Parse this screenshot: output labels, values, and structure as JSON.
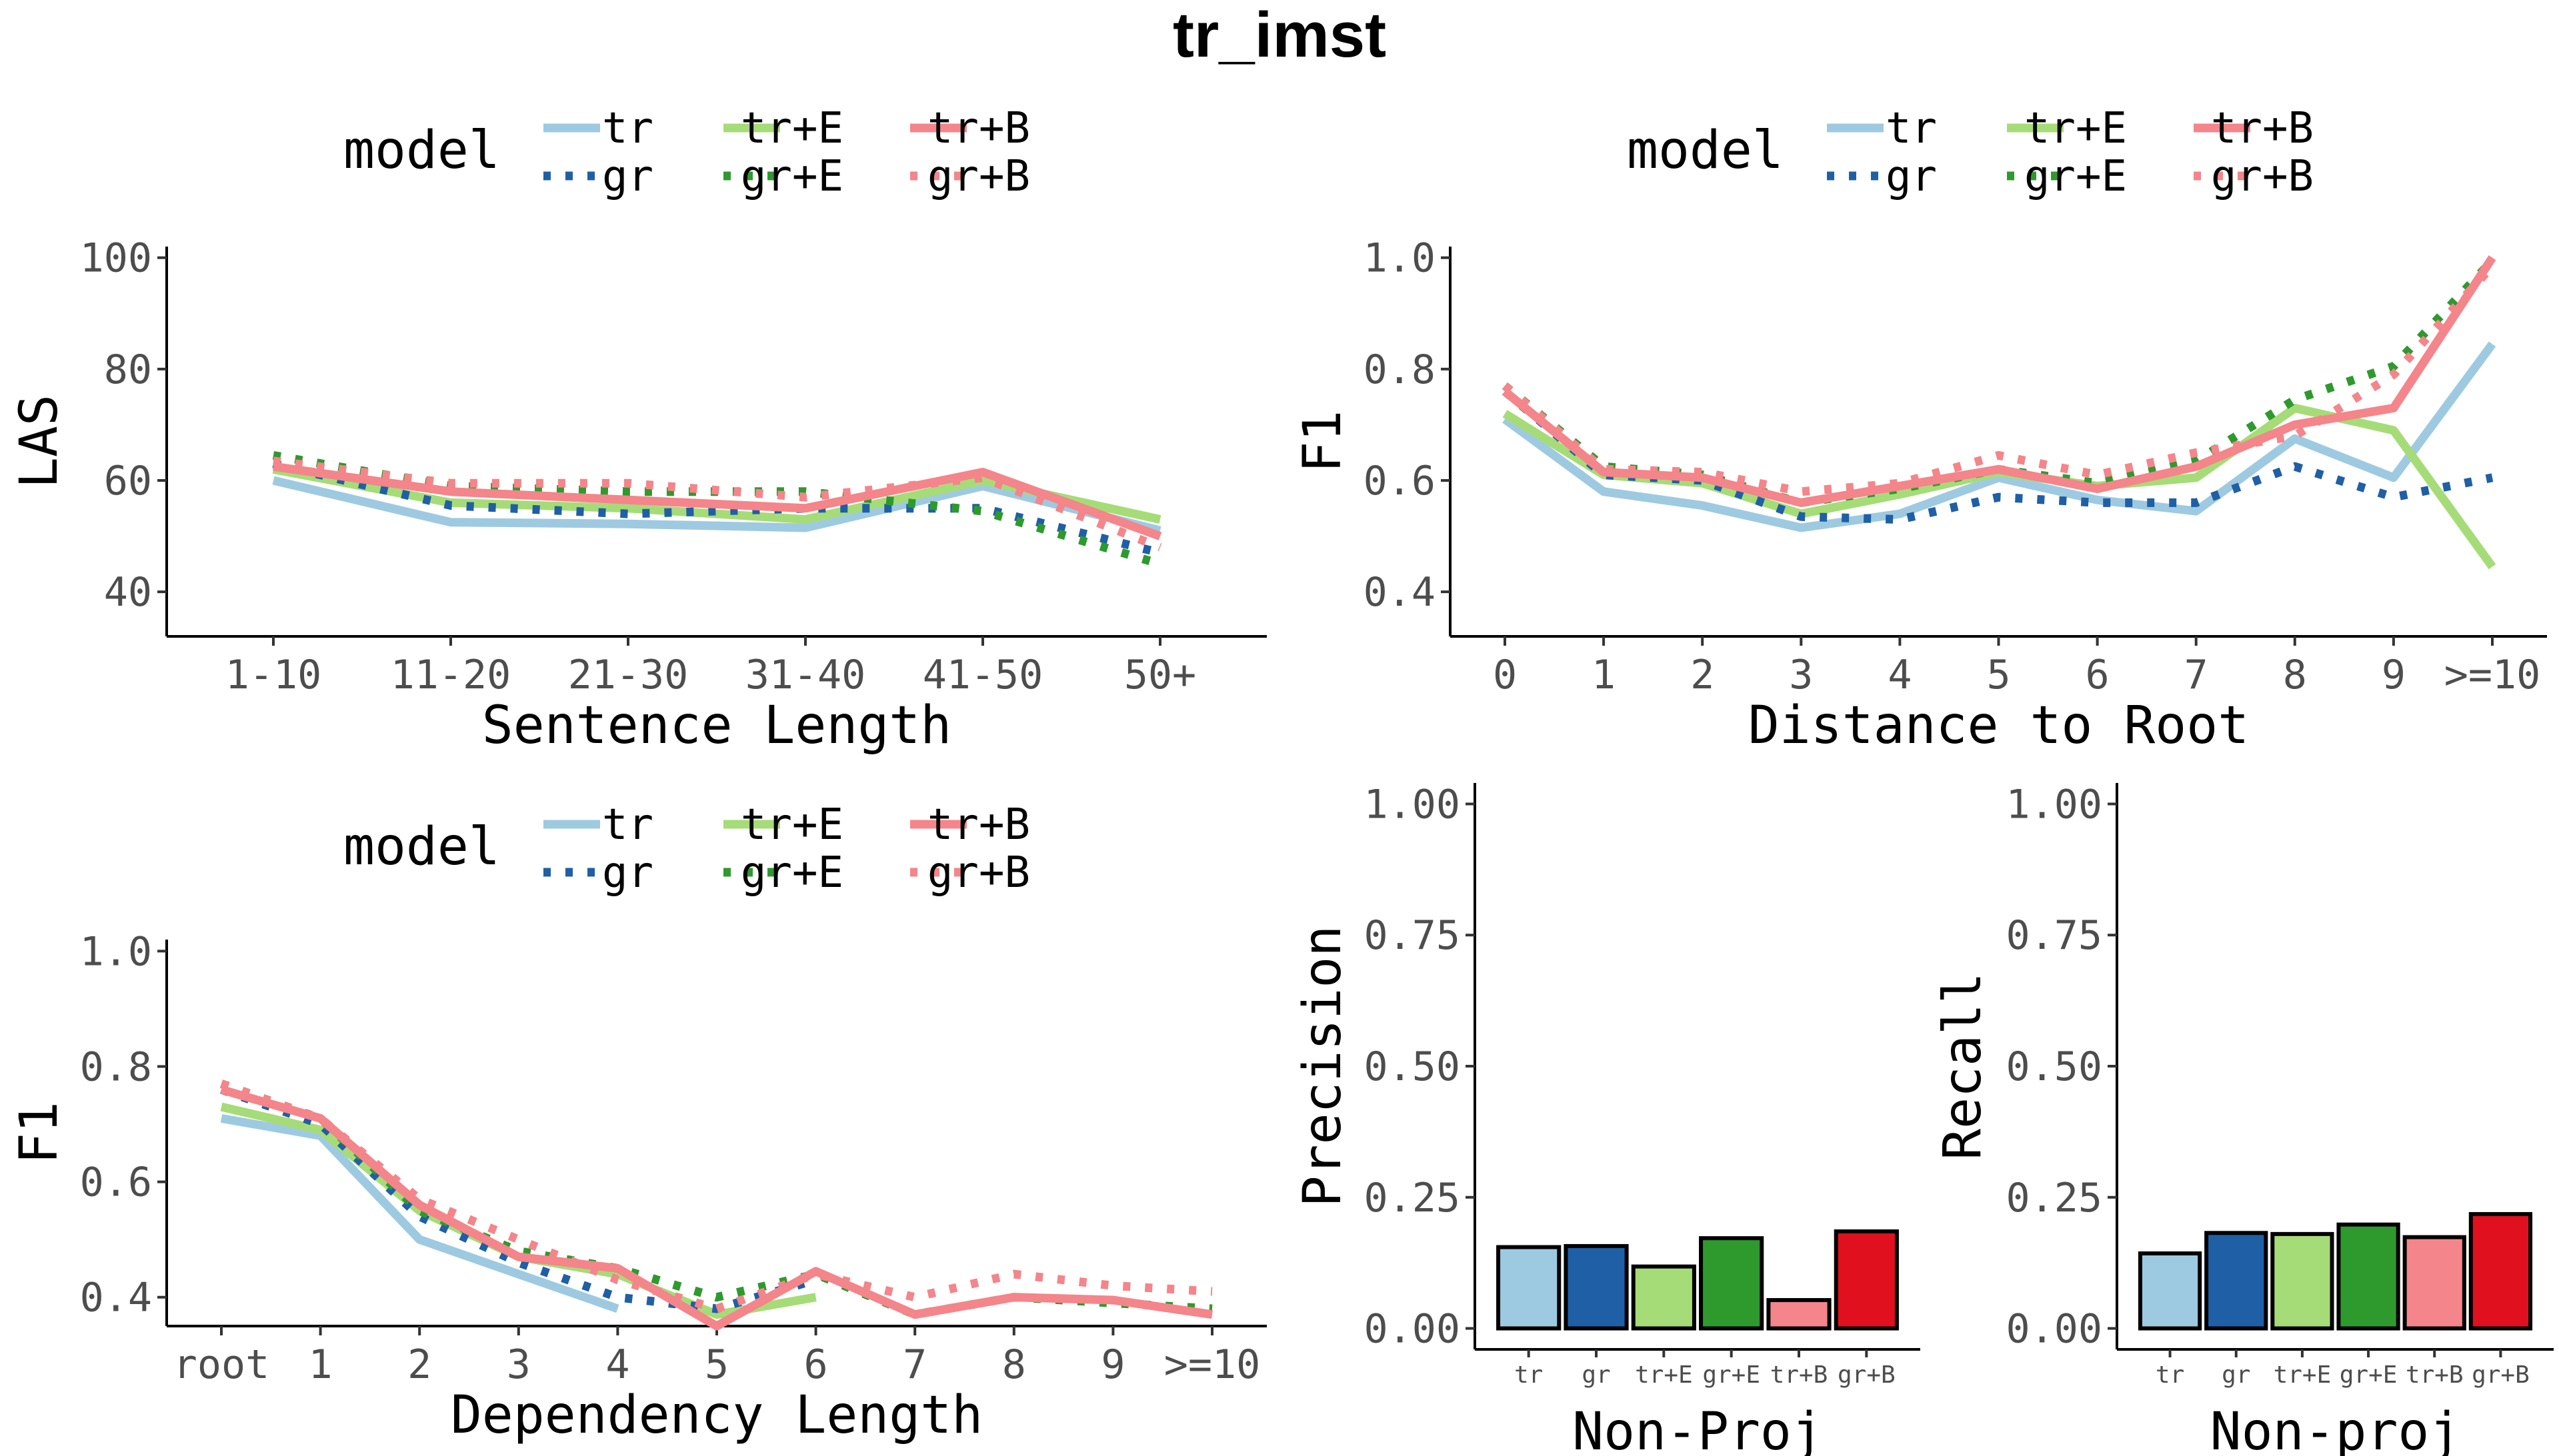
{
  "title": "tr_imst",
  "legend": {
    "title": "model",
    "labels": [
      "tr",
      "tr+E",
      "tr+B",
      "gr",
      "gr+E",
      "gr+B"
    ]
  },
  "colors": {
    "tr": "#9ecae1",
    "gr": "#1f5fa6",
    "tr+E": "#a6dc78",
    "gr+E": "#2e9a2e",
    "tr+B": "#f4858a",
    "gr+B": "#f4858a",
    "bar_tr": "#9ecae1",
    "bar_gr": "#1f5fa6",
    "bar_trE": "#a6dc78",
    "bar_grE": "#2e9a2e",
    "bar_trB": "#f4858a",
    "bar_grB": "#e0101e"
  },
  "chart_data": [
    {
      "id": "sentence",
      "type": "line",
      "xlabel": "Sentence Length",
      "ylabel": "LAS",
      "categories": [
        "1-10",
        "11-20",
        "21-30",
        "31-40",
        "41-50",
        "50+"
      ],
      "ylim": [
        32,
        102
      ],
      "yticks": [
        "40",
        "60",
        "80",
        "100"
      ],
      "series": [
        {
          "name": "tr",
          "values": [
            60,
            52.5,
            52.2,
            51.5,
            59,
            51
          ]
        },
        {
          "name": "gr",
          "values": [
            63,
            55.5,
            54,
            55,
            55,
            47
          ]
        },
        {
          "name": "tr+E",
          "values": [
            62,
            56,
            55,
            53,
            60,
            53
          ]
        },
        {
          "name": "gr+E",
          "values": [
            64.5,
            59,
            58,
            58,
            54.5,
            45
          ]
        },
        {
          "name": "tr+B",
          "values": [
            62.5,
            58,
            56.5,
            55,
            61.5,
            50
          ]
        },
        {
          "name": "gr+B",
          "values": [
            63.5,
            59.5,
            59.5,
            57,
            60.5,
            48
          ]
        }
      ]
    },
    {
      "id": "root",
      "type": "line",
      "xlabel": "Distance to Root",
      "ylabel": "F1",
      "categories": [
        "0",
        "1",
        "2",
        "3",
        "4",
        "5",
        "6",
        "7",
        "8",
        "9",
        ">=10"
      ],
      "ylim": [
        0.32,
        1.02
      ],
      "yticks": [
        "0.4",
        "0.6",
        "0.8",
        "1.0"
      ],
      "series": [
        {
          "name": "tr",
          "values": [
            0.71,
            0.58,
            0.555,
            0.515,
            0.54,
            0.605,
            0.565,
            0.545,
            0.675,
            0.605,
            0.845
          ]
        },
        {
          "name": "gr",
          "values": [
            0.76,
            0.61,
            0.6,
            0.535,
            0.53,
            0.57,
            0.56,
            0.56,
            0.625,
            0.57,
            0.605
          ]
        },
        {
          "name": "tr+E",
          "values": [
            0.72,
            0.61,
            0.595,
            0.54,
            0.575,
            0.615,
            0.59,
            0.605,
            0.73,
            0.69,
            0.445
          ]
        },
        {
          "name": "gr+E",
          "values": [
            0.77,
            0.625,
            0.61,
            0.56,
            0.585,
            0.62,
            0.595,
            0.635,
            0.745,
            0.805,
            0.995
          ]
        },
        {
          "name": "tr+B",
          "values": [
            0.76,
            0.615,
            0.605,
            0.56,
            0.59,
            0.62,
            0.585,
            0.625,
            0.7,
            0.73,
            1.0
          ]
        },
        {
          "name": "gr+B",
          "values": [
            0.77,
            0.62,
            0.615,
            0.58,
            0.595,
            0.645,
            0.61,
            0.65,
            0.68,
            0.79,
            0.985
          ]
        }
      ]
    },
    {
      "id": "deplen",
      "type": "line",
      "xlabel": "Dependency Length",
      "ylabel": "F1",
      "categories": [
        "root",
        "1",
        "2",
        "3",
        "4",
        "5",
        "6",
        "7",
        "8",
        "9",
        ">=10"
      ],
      "ylim": [
        0.35,
        1.02
      ],
      "yticks": [
        "0.4",
        "0.6",
        "0.8",
        "1.0"
      ],
      "series": [
        {
          "name": "tr",
          "values": [
            0.71,
            0.68,
            0.5,
            0.44,
            0.38,
            null,
            null,
            null,
            null,
            null,
            null
          ]
        },
        {
          "name": "gr",
          "values": [
            0.76,
            0.7,
            0.54,
            0.46,
            0.4,
            0.38,
            0.43,
            null,
            null,
            null,
            null
          ]
        },
        {
          "name": "tr+E",
          "values": [
            0.73,
            0.69,
            0.55,
            0.47,
            0.44,
            0.37,
            0.4,
            null,
            null,
            null,
            null
          ]
        },
        {
          "name": "gr+E",
          "values": [
            0.77,
            0.71,
            0.55,
            0.48,
            0.45,
            0.4,
            0.44,
            0.37,
            0.4,
            0.39,
            0.38
          ]
        },
        {
          "name": "tr+B",
          "values": [
            0.76,
            0.71,
            0.56,
            0.47,
            0.45,
            0.35,
            0.445,
            0.37,
            0.4,
            0.395,
            0.37
          ]
        },
        {
          "name": "gr+B",
          "values": [
            0.77,
            0.71,
            0.57,
            0.5,
            0.43,
            0.38,
            0.44,
            0.4,
            0.44,
            0.42,
            0.41
          ]
        }
      ]
    },
    {
      "id": "precision",
      "type": "bar",
      "xlabel": "Non-Proj",
      "ylabel": "Precision",
      "categories": [
        "tr",
        "gr",
        "tr+E",
        "gr+E",
        "tr+B",
        "gr+B"
      ],
      "values": [
        0.155,
        0.157,
        0.118,
        0.172,
        0.054,
        0.185
      ],
      "ylim": [
        -0.04,
        1.04
      ],
      "yticks": [
        "0.00",
        "0.25",
        "0.50",
        "0.75",
        "1.00"
      ]
    },
    {
      "id": "recall",
      "type": "bar",
      "xlabel": "Non-proj",
      "ylabel": "Recall",
      "categories": [
        "tr",
        "gr",
        "tr+E",
        "gr+E",
        "tr+B",
        "gr+B"
      ],
      "values": [
        0.143,
        0.182,
        0.18,
        0.198,
        0.174,
        0.218
      ],
      "ylim": [
        -0.04,
        1.04
      ],
      "yticks": [
        "0.00",
        "0.25",
        "0.50",
        "0.75",
        "1.00"
      ]
    }
  ]
}
